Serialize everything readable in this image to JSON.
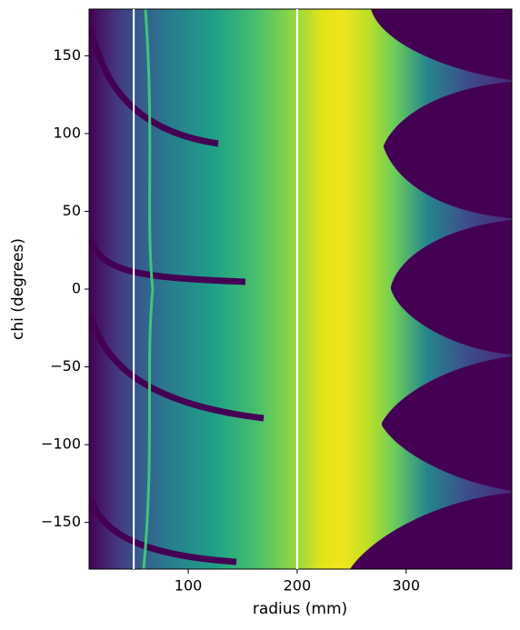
{
  "chart_data": {
    "type": "image",
    "xlabel": "radius (mm)",
    "ylabel": "chi (degrees)",
    "xlim": [
      9,
      397
    ],
    "ylim": [
      -180,
      180
    ],
    "xticks": [
      100,
      200,
      300
    ],
    "yticks": [
      {
        "value": -150,
        "label": "−150"
      },
      {
        "value": -100,
        "label": "−100"
      },
      {
        "value": -50,
        "label": "−50"
      },
      0,
      50,
      100,
      150
    ],
    "vlines": [
      50,
      200
    ],
    "vline_color": "#ffffff"
  }
}
